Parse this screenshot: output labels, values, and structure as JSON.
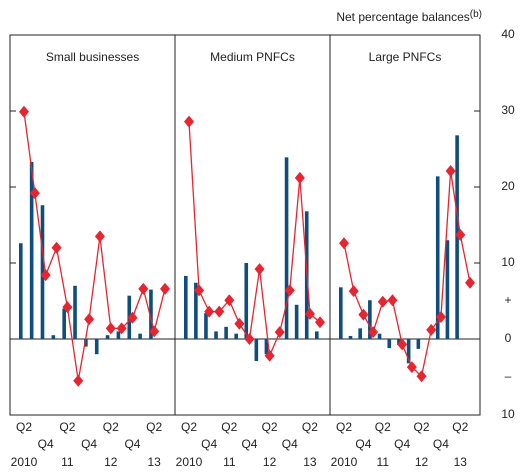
{
  "chart_data": [
    {
      "type": "combo",
      "title": "Small businesses",
      "categories": [
        "Q2",
        null,
        "Q4",
        null,
        "Q2",
        null,
        "Q4",
        null,
        "Q2",
        null,
        "Q4",
        null,
        "Q2",
        null
      ],
      "years": [
        "2010",
        "11",
        "12",
        "13"
      ],
      "series": [
        {
          "kind": "bar",
          "color": "#0e4d7d",
          "values": [
            12.6,
            23.3,
            17.6,
            0.5,
            4,
            7,
            -1,
            -2,
            0.5,
            1,
            5.7,
            0.7,
            6.5,
            null
          ]
        },
        {
          "kind": "line",
          "color": "#e52530",
          "values": [
            29.9,
            19.2,
            8.4,
            12,
            4.2,
            -5.5,
            2.6,
            13.5,
            1.4,
            1.4,
            2.8,
            6.6,
            1,
            6.6
          ]
        }
      ],
      "ylim": [
        -10,
        40
      ],
      "yticks": [
        40,
        30,
        20,
        10,
        {
          "value": 5,
          "label": "+"
        },
        0,
        {
          "value": -5,
          "label": "–"
        },
        {
          "value": -10,
          "label": "10"
        }
      ]
    },
    {
      "type": "combo",
      "title": "Medium PNFCs",
      "categories": [
        "Q2",
        null,
        "Q4",
        null,
        "Q2",
        null,
        "Q4",
        null,
        "Q2",
        null,
        "Q4",
        null,
        "Q2",
        null
      ],
      "years": [
        "2010",
        "11",
        "12",
        "13"
      ],
      "series": [
        {
          "kind": "bar",
          "color": "#0e4d7d",
          "values": [
            8.3,
            7.4,
            3.4,
            1,
            1.6,
            0.7,
            10,
            -2.9,
            -2,
            0,
            23.9,
            4.5,
            16.8,
            1
          ]
        },
        {
          "kind": "line",
          "color": "#e52530",
          "values": [
            28.6,
            6.4,
            3.6,
            3.6,
            5.1,
            2,
            0,
            9.2,
            -2.2,
            0.9,
            6.4,
            21.2,
            3.3,
            2.2
          ]
        }
      ],
      "ylim": [
        -10,
        40
      ],
      "yticks": [
        40,
        30,
        20,
        10,
        {
          "value": 5,
          "label": "+"
        },
        0,
        {
          "value": -5,
          "label": "–"
        },
        {
          "value": -10,
          "label": "10"
        }
      ]
    },
    {
      "type": "combo",
      "title": "Large PNFCs",
      "categories": [
        "Q2",
        null,
        "Q4",
        null,
        "Q2",
        null,
        "Q4",
        null,
        "Q2",
        null,
        "Q4",
        null,
        "Q2",
        null
      ],
      "years": [
        "2010",
        "11",
        "12",
        "13"
      ],
      "series": [
        {
          "kind": "bar",
          "color": "#0e4d7d",
          "values": [
            6.8,
            0.4,
            1.4,
            5.1,
            0.7,
            -1.2,
            -0.8,
            -3.2,
            -1.3,
            0,
            21.4,
            13,
            26.8,
            null
          ]
        },
        {
          "kind": "line",
          "color": "#e52530",
          "values": [
            12.6,
            6.3,
            3.2,
            0.9,
            4.9,
            5.1,
            -0.7,
            -3.7,
            -4.9,
            1.2,
            2.9,
            22.1,
            13.7,
            7.4
          ]
        }
      ],
      "ylim": [
        -10,
        40
      ],
      "yticks": [
        40,
        30,
        20,
        10,
        {
          "value": 5,
          "label": "+"
        },
        0,
        {
          "value": -5,
          "label": "–"
        },
        {
          "value": -10,
          "label": "10"
        }
      ],
      "y_label": "Net percentage balances",
      "y_label_note": "(b)"
    }
  ]
}
